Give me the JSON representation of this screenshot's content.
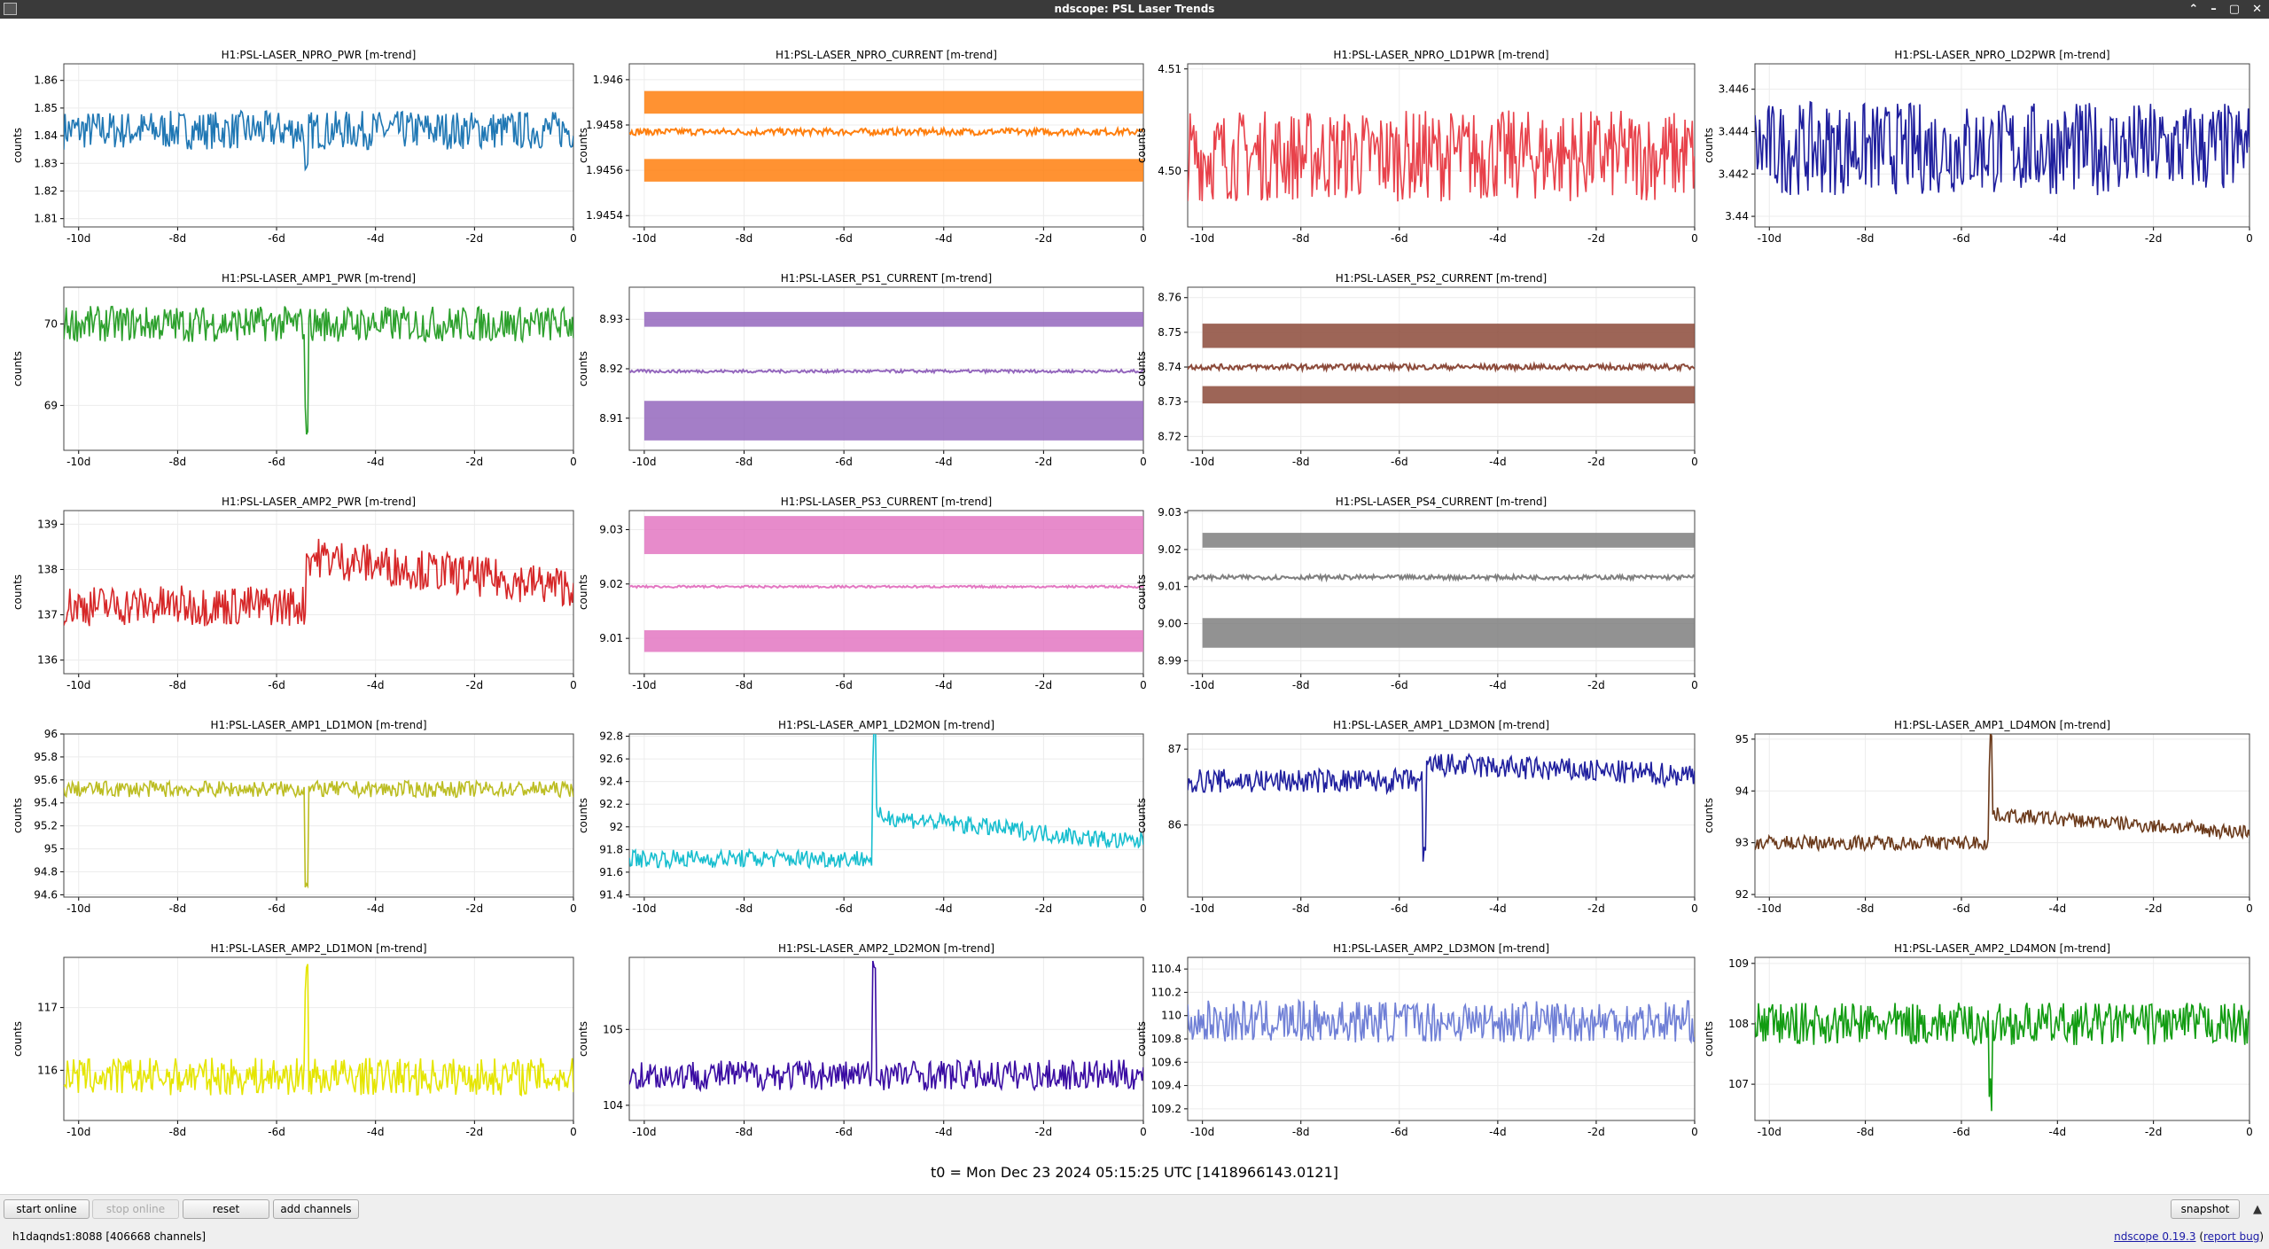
{
  "window": {
    "title": "ndscope: PSL Laser Trends",
    "controls": [
      "⌃",
      "–",
      "▢",
      "✕"
    ]
  },
  "t0_label": "t0 = Mon Dec 23 2024 05:15:25 UTC [1418966143.0121]",
  "buttons": {
    "start_online": "start online",
    "stop_online": "stop online",
    "reset": "reset",
    "add_channels": "add channels",
    "snapshot": "snapshot"
  },
  "status": {
    "server": "h1daqnds1:8088",
    "channels": "[406668 channels]",
    "version_prefix": "ndscope ",
    "version_link": "0.19.3",
    "report_bug": "report bug"
  },
  "chart_data": [
    {
      "type": "line",
      "title": "H1:PSL-LASER_NPRO_PWR [m-trend]",
      "ylabel": "counts",
      "color": "#1f77b4",
      "yticks": [
        "1.81",
        "1.82",
        "1.83",
        "1.84",
        "1.85",
        "1.86"
      ],
      "ylim": [
        1.807,
        1.866
      ],
      "xticks": [
        "-10d",
        "-8d",
        "-6d",
        "-4d",
        "-2d",
        "0"
      ],
      "pattern": "noise",
      "base": 1.842,
      "amp": 0.007,
      "spike_at": -5.4,
      "spike": -0.018
    },
    {
      "type": "line",
      "title": "H1:PSL-LASER_NPRO_CURRENT [m-trend]",
      "ylabel": "counts",
      "color": "#ff7f0e",
      "yticks": [
        "1.9454",
        "1.9456",
        "1.9458",
        "1.946"
      ],
      "ylim": [
        1.94535,
        1.94607
      ],
      "xticks": [
        "-10d",
        "-8d",
        "-6d",
        "-4d",
        "-2d",
        "0"
      ],
      "pattern": "bands",
      "bands": [
        1.94595,
        1.94585
      ],
      "bands2": [
        1.94565,
        1.94555
      ],
      "mid": 1.94577,
      "midamp": 1.5e-05
    },
    {
      "type": "line",
      "title": "H1:PSL-LASER_NPRO_LD1PWR [m-trend]",
      "ylabel": "counts",
      "color": "#e8424b",
      "yticks": [
        "4.50",
        "4.51"
      ],
      "ylim": [
        4.4945,
        4.5105
      ],
      "xticks": [
        "-10d",
        "-8d",
        "-6d",
        "-4d",
        "-2d",
        "0"
      ],
      "pattern": "noise",
      "base": 4.5015,
      "amp": 0.0045
    },
    {
      "type": "line",
      "title": "H1:PSL-LASER_NPRO_LD2PWR [m-trend]",
      "ylabel": "counts",
      "color": "#1f1f9e",
      "yticks": [
        "3.44",
        "3.442",
        "3.444",
        "3.446"
      ],
      "ylim": [
        3.4395,
        3.4472
      ],
      "xticks": [
        "-10d",
        "-8d",
        "-6d",
        "-4d",
        "-2d",
        "0"
      ],
      "pattern": "noise",
      "base": 3.4432,
      "amp": 0.0022
    },
    {
      "type": "line",
      "title": "H1:PSL-LASER_AMP1_PWR [m-trend]",
      "ylabel": "counts",
      "color": "#2ca02c",
      "yticks": [
        "69",
        "70"
      ],
      "ylim": [
        68.45,
        70.45
      ],
      "xticks": [
        "-10d",
        "-8d",
        "-6d",
        "-4d",
        "-2d",
        "0"
      ],
      "pattern": "noise",
      "base": 70.0,
      "amp": 0.22,
      "spike_at": -5.4,
      "spike": -1.2
    },
    {
      "type": "line",
      "title": "H1:PSL-LASER_PS1_CURRENT [m-trend]",
      "ylabel": "counts",
      "color": "#9467bd",
      "yticks": [
        "8.91",
        "8.92",
        "8.93"
      ],
      "ylim": [
        8.9035,
        8.9365
      ],
      "xticks": [
        "-10d",
        "-8d",
        "-6d",
        "-4d",
        "-2d",
        "0"
      ],
      "pattern": "bands",
      "bands": [
        8.9315,
        8.9285
      ],
      "bands2": [
        8.9135,
        8.9055
      ],
      "mid": 8.9195,
      "midamp": 0.0003
    },
    {
      "type": "line",
      "title": "H1:PSL-LASER_PS2_CURRENT [m-trend]",
      "ylabel": "counts",
      "color": "#8c4a3a",
      "yticks": [
        "8.72",
        "8.73",
        "8.74",
        "8.75",
        "8.76"
      ],
      "ylim": [
        8.716,
        8.763
      ],
      "xticks": [
        "-10d",
        "-8d",
        "-6d",
        "-4d",
        "-2d",
        "0"
      ],
      "pattern": "bands",
      "bands": [
        8.7525,
        8.7455
      ],
      "bands2": [
        8.7345,
        8.7295
      ],
      "mid": 8.74,
      "midamp": 0.0008
    },
    null,
    {
      "type": "line",
      "title": "H1:PSL-LASER_AMP2_PWR [m-trend]",
      "ylabel": "counts",
      "color": "#d62728",
      "yticks": [
        "136",
        "137",
        "138",
        "139"
      ],
      "ylim": [
        135.7,
        139.3
      ],
      "xticks": [
        "-10d",
        "-8d",
        "-6d",
        "-4d",
        "-2d",
        "0"
      ],
      "pattern": "noise",
      "base": 137.2,
      "amp": 0.45,
      "step_at": -5.4,
      "step": 1.1
    },
    {
      "type": "line",
      "title": "H1:PSL-LASER_PS3_CURRENT [m-trend]",
      "ylabel": "counts",
      "color": "#e377c2",
      "yticks": [
        "9.01",
        "9.02",
        "9.03"
      ],
      "ylim": [
        9.0035,
        9.0335
      ],
      "xticks": [
        "-10d",
        "-8d",
        "-6d",
        "-4d",
        "-2d",
        "0"
      ],
      "pattern": "bands",
      "bands": [
        9.0325,
        9.0255
      ],
      "bands2": [
        9.0115,
        9.0075
      ],
      "mid": 9.0195,
      "midamp": 0.0002
    },
    {
      "type": "line",
      "title": "H1:PSL-LASER_PS4_CURRENT [m-trend]",
      "ylabel": "counts",
      "color": "#7f7f7f",
      "yticks": [
        "8.99",
        "9.00",
        "9.01",
        "9.02",
        "9.03"
      ],
      "ylim": [
        8.9865,
        9.0305
      ],
      "xticks": [
        "-10d",
        "-8d",
        "-6d",
        "-4d",
        "-2d",
        "0"
      ],
      "pattern": "bands",
      "bands": [
        9.0245,
        9.0205
      ],
      "bands2": [
        9.0015,
        8.9935
      ],
      "mid": 9.0125,
      "midamp": 0.0006
    },
    null,
    {
      "type": "line",
      "title": "H1:PSL-LASER_AMP1_LD1MON [m-trend]",
      "ylabel": "counts",
      "color": "#bcbd22",
      "yticks": [
        "94.6",
        "94.8",
        "95",
        "95.2",
        "95.4",
        "95.6",
        "95.8",
        "96"
      ],
      "ylim": [
        94.58,
        96.0
      ],
      "xticks": [
        "-10d",
        "-8d",
        "-6d",
        "-4d",
        "-2d",
        "0"
      ],
      "pattern": "noise",
      "base": 95.52,
      "amp": 0.07,
      "spike_at": -5.4,
      "spike": -0.8
    },
    {
      "type": "line",
      "title": "H1:PSL-LASER_AMP1_LD2MON [m-trend]",
      "ylabel": "counts",
      "color": "#17becf",
      "yticks": [
        "91.4",
        "91.6",
        "91.8",
        "92",
        "92.2",
        "92.4",
        "92.6",
        "92.8"
      ],
      "ylim": [
        91.38,
        92.82
      ],
      "xticks": [
        "-10d",
        "-8d",
        "-6d",
        "-4d",
        "-2d",
        "0"
      ],
      "pattern": "noise",
      "base": 91.72,
      "amp": 0.08,
      "step_at": -5.4,
      "step": 0.38,
      "spike_at": -5.4,
      "spike": 0.8
    },
    {
      "type": "line",
      "title": "H1:PSL-LASER_AMP1_LD3MON [m-trend]",
      "ylabel": "counts",
      "color": "#1f1f9e",
      "yticks": [
        "86",
        "87"
      ],
      "ylim": [
        85.05,
        87.2
      ],
      "xticks": [
        "-10d",
        "-8d",
        "-6d",
        "-4d",
        "-2d",
        "0"
      ],
      "pattern": "noise",
      "base": 86.58,
      "amp": 0.16,
      "step_at": -5.5,
      "step": 0.22,
      "spike_at": -5.5,
      "spike": -1.2
    },
    {
      "type": "line",
      "title": "H1:PSL-LASER_AMP1_LD4MON [m-trend]",
      "ylabel": "counts",
      "color": "#6b3a1b",
      "yticks": [
        "92",
        "93",
        "94",
        "95"
      ],
      "ylim": [
        91.95,
        95.1
      ],
      "xticks": [
        "-10d",
        "-8d",
        "-6d",
        "-4d",
        "-2d",
        "0"
      ],
      "pattern": "noise",
      "base": 93.0,
      "amp": 0.14,
      "step_at": -5.4,
      "step": 0.55,
      "spike_at": -5.4,
      "spike": 1.5
    },
    {
      "type": "line",
      "title": "H1:PSL-LASER_AMP2_LD1MON [m-trend]",
      "ylabel": "counts",
      "color": "#e5e500",
      "yticks": [
        "116",
        "117"
      ],
      "ylim": [
        115.2,
        117.8
      ],
      "xticks": [
        "-10d",
        "-8d",
        "-6d",
        "-4d",
        "-2d",
        "0"
      ],
      "pattern": "noise",
      "base": 115.9,
      "amp": 0.3,
      "spike_at": -5.4,
      "spike": 1.6
    },
    {
      "type": "line",
      "title": "H1:PSL-LASER_AMP2_LD2MON [m-trend]",
      "ylabel": "counts",
      "color": "#3a0ca3",
      "yticks": [
        "104",
        "105"
      ],
      "ylim": [
        103.8,
        105.95
      ],
      "xticks": [
        "-10d",
        "-8d",
        "-6d",
        "-4d",
        "-2d",
        "0"
      ],
      "pattern": "noise",
      "base": 104.4,
      "amp": 0.2,
      "spike_at": -5.4,
      "spike": 1.4
    },
    {
      "type": "line",
      "title": "H1:PSL-LASER_AMP2_LD3MON [m-trend]",
      "ylabel": "counts",
      "color": "#6f7fd6",
      "yticks": [
        "109.2",
        "109.4",
        "109.6",
        "109.8",
        "110",
        "110.2",
        "110.4"
      ],
      "ylim": [
        109.1,
        110.5
      ],
      "xticks": [
        "-10d",
        "-8d",
        "-6d",
        "-4d",
        "-2d",
        "0"
      ],
      "pattern": "noise",
      "base": 109.95,
      "amp": 0.18
    },
    {
      "type": "line",
      "title": "H1:PSL-LASER_AMP2_LD4MON [m-trend]",
      "ylabel": "counts",
      "color": "#119c11",
      "yticks": [
        "107",
        "108",
        "109"
      ],
      "ylim": [
        106.4,
        109.1
      ],
      "xticks": [
        "-10d",
        "-8d",
        "-6d",
        "-4d",
        "-2d",
        "0"
      ],
      "pattern": "noise",
      "base": 108.0,
      "amp": 0.35,
      "spike_at": -5.4,
      "spike": -1.2
    }
  ]
}
